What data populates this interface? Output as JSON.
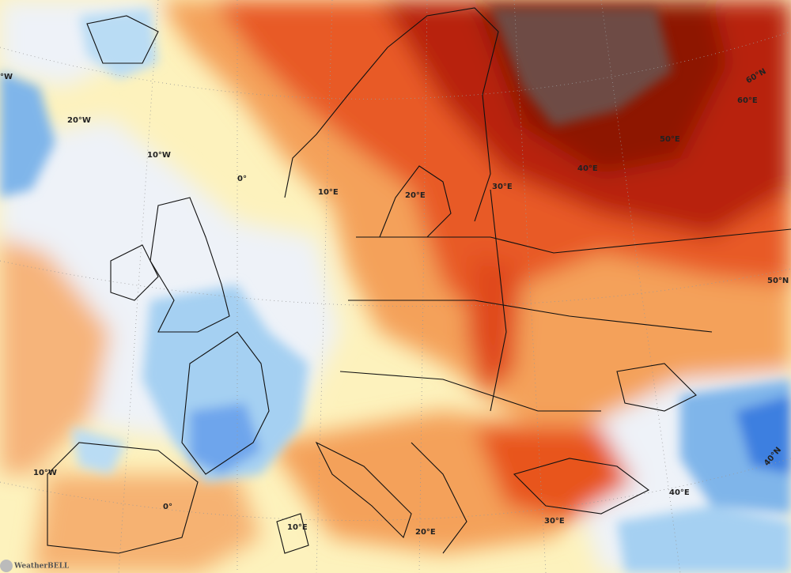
{
  "graticule_labels": [
    "°W",
    "20°W",
    "10°W",
    "0°",
    "10°E",
    "20°E",
    "30°E",
    "40°E",
    "50°E",
    "60°E",
    "60°N",
    "50°N",
    "40°N",
    "10°W",
    "0°",
    "10°E",
    "20°E",
    "30°E",
    "40°E"
  ],
  "logo": "WeatherBELL"
}
